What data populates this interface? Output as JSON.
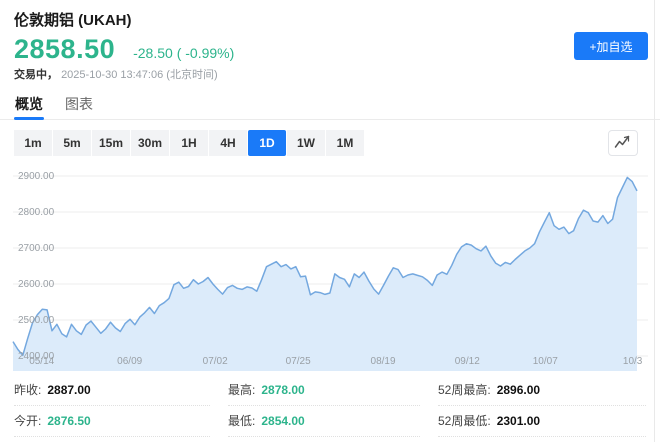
{
  "colors": {
    "green": "#2db48c",
    "blue": "#1a7af8"
  },
  "header": {
    "title": "伦敦期铝 (UKAH)",
    "price": "2858.50",
    "change": "-28.50 ( -0.99%)",
    "status_label": "交易中，",
    "timestamp": "2025-10-30 13:47:06",
    "timezone": "(北京时间)",
    "add_watchlist_label": "+加自选"
  },
  "tabs": [
    {
      "label": "概览",
      "active": true
    },
    {
      "label": "图表",
      "active": false
    }
  ],
  "timeframes": [
    {
      "label": "1m"
    },
    {
      "label": "5m"
    },
    {
      "label": "15m"
    },
    {
      "label": "30m"
    },
    {
      "label": "1H"
    },
    {
      "label": "4H"
    },
    {
      "label": "1D",
      "active": true
    },
    {
      "label": "1W"
    },
    {
      "label": "1M"
    }
  ],
  "chart_data": {
    "type": "area",
    "x_ticks": [
      {
        "label": "05/14",
        "pos": 0.046
      },
      {
        "label": "06/09",
        "pos": 0.187
      },
      {
        "label": "07/02",
        "pos": 0.324
      },
      {
        "label": "07/25",
        "pos": 0.457
      },
      {
        "label": "08/19",
        "pos": 0.593
      },
      {
        "label": "09/12",
        "pos": 0.728
      },
      {
        "label": "10/07",
        "pos": 0.853
      },
      {
        "label": "10/3",
        "pos": 0.993
      }
    ],
    "y_ticks": [
      2400,
      2500,
      2600,
      2700,
      2800,
      2900
    ],
    "ylim": [
      2400,
      2900
    ],
    "grid": true,
    "legend": false,
    "line_color": "#74a8df",
    "fill_color": "#dcebfa",
    "grid_color": "#ececec",
    "axis_label_color": "#9aa0a6",
    "values": [
      2440,
      2418,
      2402,
      2448,
      2492,
      2515,
      2530,
      2528,
      2470,
      2488,
      2462,
      2453,
      2488,
      2470,
      2460,
      2486,
      2497,
      2480,
      2463,
      2475,
      2494,
      2478,
      2468,
      2490,
      2502,
      2487,
      2508,
      2520,
      2535,
      2518,
      2540,
      2548,
      2560,
      2598,
      2605,
      2588,
      2593,
      2612,
      2600,
      2607,
      2618,
      2600,
      2585,
      2572,
      2590,
      2596,
      2588,
      2585,
      2592,
      2589,
      2580,
      2612,
      2648,
      2655,
      2662,
      2648,
      2654,
      2642,
      2648,
      2620,
      2622,
      2570,
      2578,
      2576,
      2571,
      2575,
      2628,
      2618,
      2613,
      2592,
      2628,
      2618,
      2633,
      2608,
      2586,
      2572,
      2596,
      2622,
      2645,
      2640,
      2618,
      2625,
      2628,
      2624,
      2620,
      2610,
      2596,
      2625,
      2633,
      2627,
      2652,
      2682,
      2703,
      2712,
      2708,
      2698,
      2692,
      2705,
      2678,
      2658,
      2650,
      2660,
      2655,
      2668,
      2680,
      2692,
      2700,
      2712,
      2745,
      2772,
      2798,
      2762,
      2752,
      2758,
      2740,
      2748,
      2782,
      2805,
      2798,
      2775,
      2772,
      2790,
      2768,
      2780,
      2840,
      2868,
      2896,
      2885,
      2858.5
    ]
  },
  "stats": {
    "rows": [
      [
        {
          "label": "昨收:",
          "value": "2887.00",
          "color": "dark"
        },
        {
          "label": "最高:",
          "value": "2878.00",
          "color": "green"
        },
        {
          "label": "52周最高:",
          "value": "2896.00",
          "color": "dark"
        }
      ],
      [
        {
          "label": "今开:",
          "value": "2876.50",
          "color": "green"
        },
        {
          "label": "最低:",
          "value": "2854.00",
          "color": "green"
        },
        {
          "label": "52周最低:",
          "value": "2301.00",
          "color": "dark"
        }
      ]
    ]
  }
}
